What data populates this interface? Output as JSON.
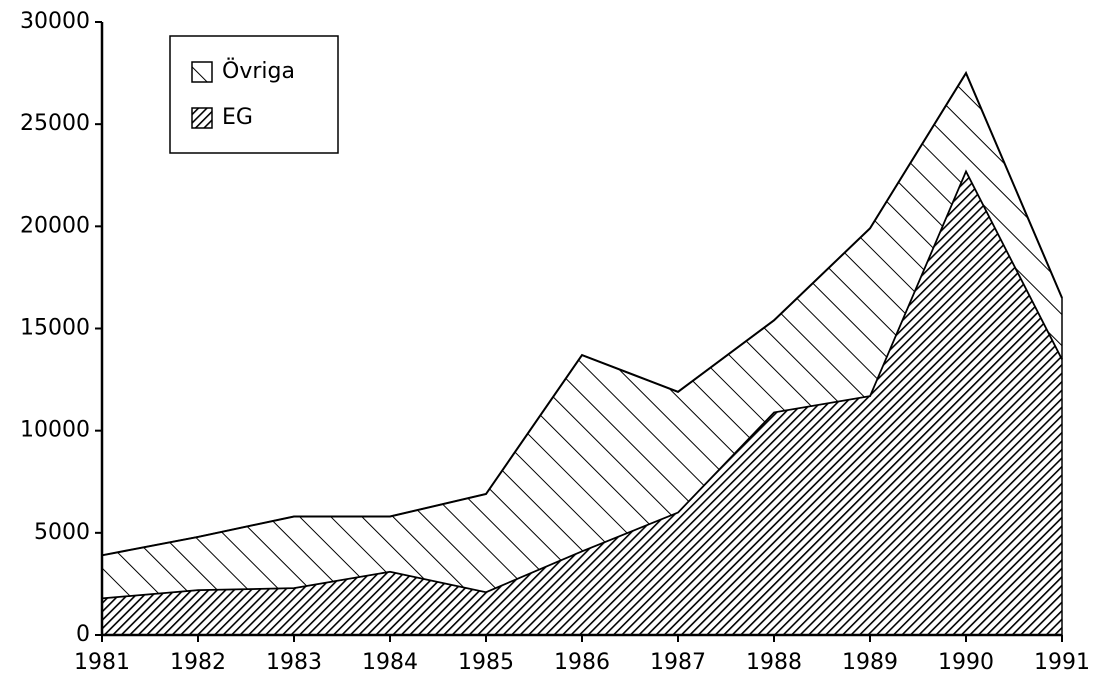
{
  "chart_data": {
    "type": "stacked_area",
    "x": [
      1981,
      1982,
      1983,
      1984,
      1985,
      1986,
      1987,
      1988,
      1989,
      1990,
      1991
    ],
    "series": [
      {
        "name": "EG",
        "color": "#000000",
        "values": [
          1800,
          2200,
          2300,
          3100,
          2100,
          4100,
          6000,
          10900,
          11700,
          22700,
          13500
        ]
      },
      {
        "name": "Övriga",
        "color": "#000000",
        "values": [
          2100,
          2600,
          3500,
          2700,
          4800,
          9600,
          5900,
          4500,
          8200,
          4800,
          3000
        ]
      }
    ],
    "xlim": [
      1981,
      1991
    ],
    "xticks": [
      1981,
      1982,
      1983,
      1984,
      1985,
      1986,
      1987,
      1988,
      1989,
      1990,
      1991
    ],
    "ylim": [
      0,
      30000
    ],
    "yticks": [
      0,
      5000,
      10000,
      15000,
      20000,
      25000,
      30000
    ],
    "legend": "upper left",
    "grid": false
  }
}
